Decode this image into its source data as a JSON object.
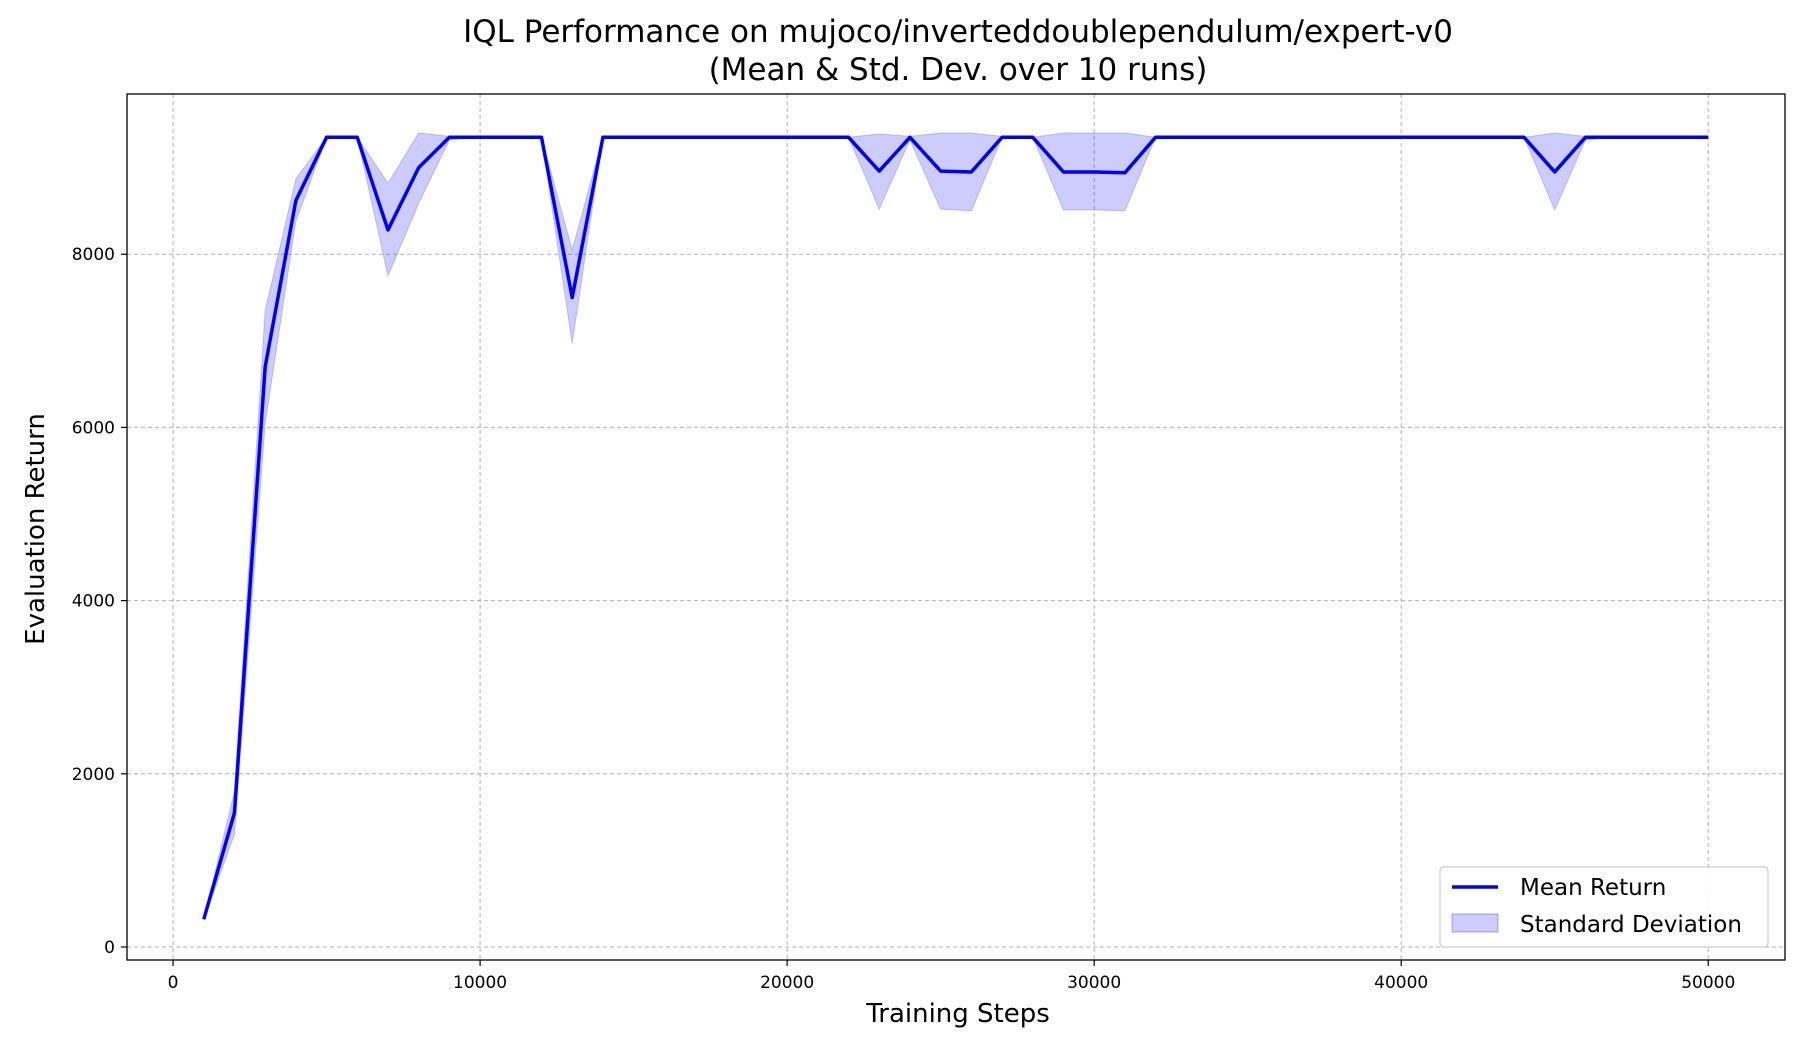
{
  "chart_data": {
    "type": "line",
    "title": "IQL Performance on mujoco/inverteddoublependulum/expert-v0",
    "subtitle": "(Mean & Std. Dev. over 10 runs)",
    "xlabel": "Training Steps",
    "ylabel": "Evaluation Return",
    "xlim": [
      -1500,
      52500
    ],
    "ylim": [
      -150,
      9850
    ],
    "xticks": [
      0,
      10000,
      20000,
      30000,
      40000,
      50000
    ],
    "yticks": [
      0,
      2000,
      4000,
      6000,
      8000
    ],
    "grid": true,
    "legend_position": "lower-right",
    "colors": {
      "line": "#0000ff",
      "band": "#0000ff"
    },
    "series": [
      {
        "name": "Mean Return",
        "x": [
          1000,
          2000,
          3000,
          4000,
          5000,
          6000,
          7000,
          8000,
          9000,
          10000,
          11000,
          12000,
          13000,
          14000,
          15000,
          16000,
          17000,
          18000,
          19000,
          20000,
          21000,
          22000,
          23000,
          24000,
          25000,
          26000,
          27000,
          28000,
          29000,
          30000,
          31000,
          32000,
          33000,
          34000,
          35000,
          36000,
          37000,
          38000,
          39000,
          40000,
          41000,
          42000,
          43000,
          44000,
          45000,
          46000,
          47000,
          48000,
          49000,
          50000
        ],
        "y": [
          320,
          1550,
          6700,
          8620,
          9350,
          9350,
          8280,
          9000,
          9350,
          9350,
          9350,
          9350,
          7500,
          9350,
          9350,
          9350,
          9350,
          9350,
          9350,
          9350,
          9350,
          9350,
          8960,
          9350,
          8960,
          8950,
          9350,
          9350,
          8950,
          8950,
          8940,
          9350,
          9350,
          9350,
          9350,
          9350,
          9350,
          9350,
          9350,
          9350,
          9350,
          9350,
          9350,
          9350,
          8950,
          9350,
          9350,
          9350,
          9350,
          9350
        ]
      },
      {
        "name": "Standard Deviation",
        "lower": [
          320,
          1300,
          6050,
          8380,
          9350,
          9350,
          7750,
          8590,
          9320,
          9350,
          9350,
          9350,
          6970,
          9350,
          9350,
          9350,
          9350,
          9350,
          9350,
          9350,
          9350,
          9350,
          8520,
          9320,
          8520,
          8500,
          9350,
          9350,
          8510,
          8510,
          8500,
          9350,
          9350,
          9350,
          9350,
          9350,
          9350,
          9350,
          9350,
          9350,
          9350,
          9350,
          9350,
          9350,
          8510,
          9320,
          9350,
          9350,
          9350,
          9350
        ],
        "upper": [
          320,
          1800,
          7350,
          8870,
          9350,
          9350,
          8820,
          9400,
          9360,
          9350,
          9350,
          9350,
          8050,
          9350,
          9350,
          9350,
          9350,
          9350,
          9350,
          9350,
          9350,
          9350,
          9390,
          9360,
          9400,
          9400,
          9360,
          9350,
          9400,
          9400,
          9400,
          9350,
          9350,
          9350,
          9350,
          9350,
          9350,
          9350,
          9350,
          9350,
          9350,
          9350,
          9350,
          9350,
          9400,
          9360,
          9350,
          9350,
          9350,
          9350
        ]
      }
    ]
  }
}
